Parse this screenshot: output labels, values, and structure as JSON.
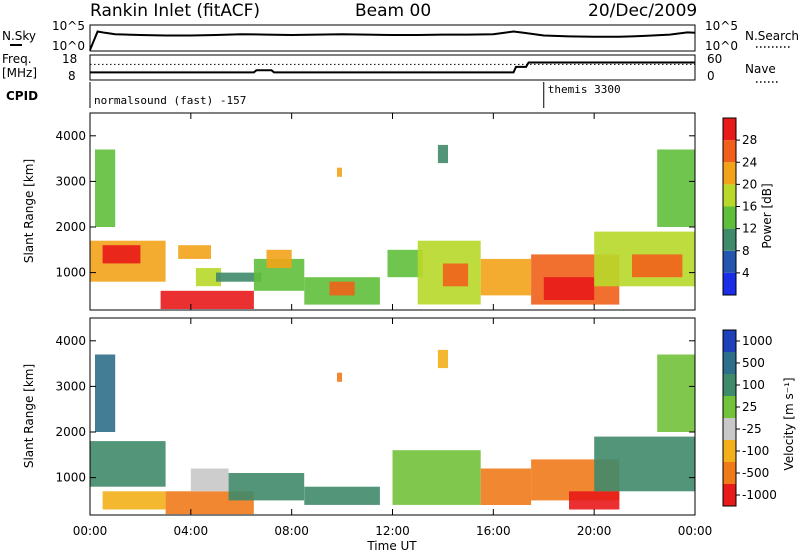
{
  "header": {
    "title": "Rankin Inlet (fitACF)",
    "beam": "Beam 00",
    "date": "20/Dec/2009"
  },
  "side_labels": {
    "nsky": "N.Sky",
    "nsearch": "N.Search",
    "freq": "Freq.",
    "freq_unit": "[MHz]",
    "nave": "Nave",
    "cpid": "CPID"
  },
  "noise_axis": {
    "left_ticks": [
      "10^5",
      "10^0"
    ],
    "right_ticks": [
      "10^5",
      "10^0"
    ]
  },
  "freq_axis": {
    "left_ticks": [
      "18",
      "8"
    ],
    "right_ticks": [
      "60",
      "0"
    ]
  },
  "cpid_bar": {
    "first_label": "normalsound (fast) -157",
    "second_label": "themis 3300",
    "switch_hour": 18.0
  },
  "time_axis": {
    "ticks": [
      "00:00",
      "04:00",
      "08:00",
      "12:00",
      "16:00",
      "20:00",
      "00:00"
    ],
    "label": "Time UT"
  },
  "range_axis": {
    "label": "Slant Range [km]",
    "ticks": [
      "1000",
      "2000",
      "3000",
      "4000"
    ]
  },
  "power_scale": {
    "label": "Power [dB]",
    "ticks": [
      "4",
      "8",
      "12",
      "16",
      "20",
      "24",
      "28"
    ],
    "colors": [
      "#1a2ee8",
      "#2456b0",
      "#3f8a6a",
      "#5fbf3a",
      "#b8d82a",
      "#f2a31a",
      "#f0601a",
      "#e81a1a"
    ]
  },
  "velocity_scale": {
    "label": "Velocity [m s⁻¹]",
    "ticks": [
      "1000",
      "500",
      "100",
      "25",
      "-25",
      "-100",
      "-500",
      "-1000"
    ],
    "colors": [
      "#1e40b8",
      "#2d6e8a",
      "#3f8a6a",
      "#72c23a",
      "#c8c8c8",
      "#f2b01a",
      "#f07a1a",
      "#e81a1a"
    ]
  },
  "chart_data": [
    {
      "type": "line",
      "title": "N.Sky / N.Search",
      "x_unit": "hours UT",
      "series": [
        {
          "name": "N.Sky",
          "x": [
            0,
            0.3,
            0.6,
            1,
            2,
            3,
            4,
            5,
            6,
            7,
            8,
            9,
            10,
            11,
            12,
            13,
            14,
            15,
            16,
            16.8,
            17.2,
            18,
            19,
            20,
            21,
            22,
            23,
            23.7,
            24
          ],
          "y_log10": [
            0,
            4.2,
            3.9,
            3.6,
            3.4,
            3.3,
            3.3,
            3.4,
            3.6,
            3.5,
            3.4,
            3.5,
            3.6,
            3.5,
            3.4,
            3.4,
            3.5,
            3.5,
            3.6,
            4.2,
            3.9,
            3.3,
            3.1,
            3.0,
            3.0,
            3.2,
            3.5,
            4.0,
            3.9
          ]
        }
      ]
    },
    {
      "type": "line",
      "title": "Freq. / Nave",
      "x_unit": "hours UT",
      "series": [
        {
          "name": "Freq.",
          "x": [
            0,
            6.5,
            6.6,
            7.2,
            7.3,
            16.8,
            16.9,
            17.3,
            17.4,
            24
          ],
          "y": [
            11.0,
            11.0,
            12.0,
            12.0,
            11.0,
            11.0,
            13.5,
            13.5,
            15.5,
            15.5
          ]
        },
        {
          "name": "Nave",
          "x": [
            0,
            24
          ],
          "y": [
            40,
            40
          ]
        }
      ]
    },
    {
      "type": "heatmap",
      "title": "Power",
      "xlabel": "Time UT",
      "ylabel": "Slant Range [km]",
      "xlim": [
        0,
        24
      ],
      "ylim": [
        180,
        4500
      ],
      "colorbar": "Power [dB]",
      "regions": [
        {
          "t": [
            0.0,
            3.0
          ],
          "r": [
            800,
            1700
          ],
          "power": 22
        },
        {
          "t": [
            0.5,
            2.0
          ],
          "r": [
            1200,
            1600
          ],
          "power": 28
        },
        {
          "t": [
            0.2,
            1.0
          ],
          "r": [
            2000,
            3700
          ],
          "power": 12
        },
        {
          "t": [
            2.8,
            6.5
          ],
          "r": [
            200,
            600
          ],
          "power": 30
        },
        {
          "t": [
            3.5,
            4.8
          ],
          "r": [
            1300,
            1600
          ],
          "power": 20
        },
        {
          "t": [
            4.2,
            5.2
          ],
          "r": [
            700,
            1100
          ],
          "power": 16
        },
        {
          "t": [
            5.0,
            6.8
          ],
          "r": [
            800,
            1000
          ],
          "power": 8
        },
        {
          "t": [
            6.5,
            8.5
          ],
          "r": [
            600,
            1300
          ],
          "power": 12
        },
        {
          "t": [
            7.0,
            8.0
          ],
          "r": [
            1100,
            1500
          ],
          "power": 20
        },
        {
          "t": [
            8.5,
            11.5
          ],
          "r": [
            300,
            900
          ],
          "power": 14
        },
        {
          "t": [
            9.5,
            10.5
          ],
          "r": [
            500,
            800
          ],
          "power": 24
        },
        {
          "t": [
            11.8,
            13.2
          ],
          "r": [
            900,
            1500
          ],
          "power": 12
        },
        {
          "t": [
            13.0,
            15.5
          ],
          "r": [
            300,
            1700
          ],
          "power": 16
        },
        {
          "t": [
            14.0,
            15.0
          ],
          "r": [
            700,
            1200
          ],
          "power": 24
        },
        {
          "t": [
            15.5,
            17.5
          ],
          "r": [
            500,
            1300
          ],
          "power": 20
        },
        {
          "t": [
            17.5,
            21.0
          ],
          "r": [
            300,
            1400
          ],
          "power": 26
        },
        {
          "t": [
            18.0,
            20.0
          ],
          "r": [
            400,
            900
          ],
          "power": 30
        },
        {
          "t": [
            20.0,
            24.0
          ],
          "r": [
            700,
            1900
          ],
          "power": 18
        },
        {
          "t": [
            21.5,
            23.5
          ],
          "r": [
            900,
            1400
          ],
          "power": 24
        },
        {
          "t": [
            22.5,
            24.0
          ],
          "r": [
            2000,
            3700
          ],
          "power": 14
        },
        {
          "t": [
            13.8,
            14.2
          ],
          "r": [
            3400,
            3800
          ],
          "power": 8
        },
        {
          "t": [
            9.8,
            10.0
          ],
          "r": [
            3100,
            3300
          ],
          "power": 20
        }
      ]
    },
    {
      "type": "heatmap",
      "title": "Velocity",
      "xlabel": "Time UT",
      "ylabel": "Slant Range [km]",
      "xlim": [
        0,
        24
      ],
      "ylim": [
        180,
        4500
      ],
      "colorbar": "Velocity [m s-1]",
      "regions": [
        {
          "t": [
            0.0,
            3.0
          ],
          "r": [
            800,
            1800
          ],
          "velocity": 300
        },
        {
          "t": [
            0.2,
            1.0
          ],
          "r": [
            2000,
            3700
          ],
          "velocity": 500
        },
        {
          "t": [
            0.5,
            3.0
          ],
          "r": [
            300,
            700
          ],
          "velocity": -100
        },
        {
          "t": [
            3.0,
            6.5
          ],
          "r": [
            200,
            700
          ],
          "velocity": -150
        },
        {
          "t": [
            4.0,
            5.5
          ],
          "r": [
            700,
            1200
          ],
          "velocity": 0
        },
        {
          "t": [
            5.5,
            8.5
          ],
          "r": [
            500,
            1100
          ],
          "velocity": 200
        },
        {
          "t": [
            8.5,
            11.5
          ],
          "r": [
            400,
            800
          ],
          "velocity": 150
        },
        {
          "t": [
            9.8,
            10.0
          ],
          "r": [
            3100,
            3300
          ],
          "velocity": -300
        },
        {
          "t": [
            12.0,
            15.5
          ],
          "r": [
            400,
            1600
          ],
          "velocity": 50
        },
        {
          "t": [
            15.5,
            17.5
          ],
          "r": [
            400,
            1200
          ],
          "velocity": -200
        },
        {
          "t": [
            17.5,
            21.0
          ],
          "r": [
            500,
            1400
          ],
          "velocity": -300
        },
        {
          "t": [
            19.0,
            21.0
          ],
          "r": [
            300,
            700
          ],
          "velocity": -600
        },
        {
          "t": [
            20.0,
            24.0
          ],
          "r": [
            700,
            1900
          ],
          "velocity": 200
        },
        {
          "t": [
            22.5,
            24.0
          ],
          "r": [
            2000,
            3700
          ],
          "velocity": 80
        },
        {
          "t": [
            13.8,
            14.2
          ],
          "r": [
            3400,
            3800
          ],
          "velocity": -80
        }
      ]
    }
  ]
}
